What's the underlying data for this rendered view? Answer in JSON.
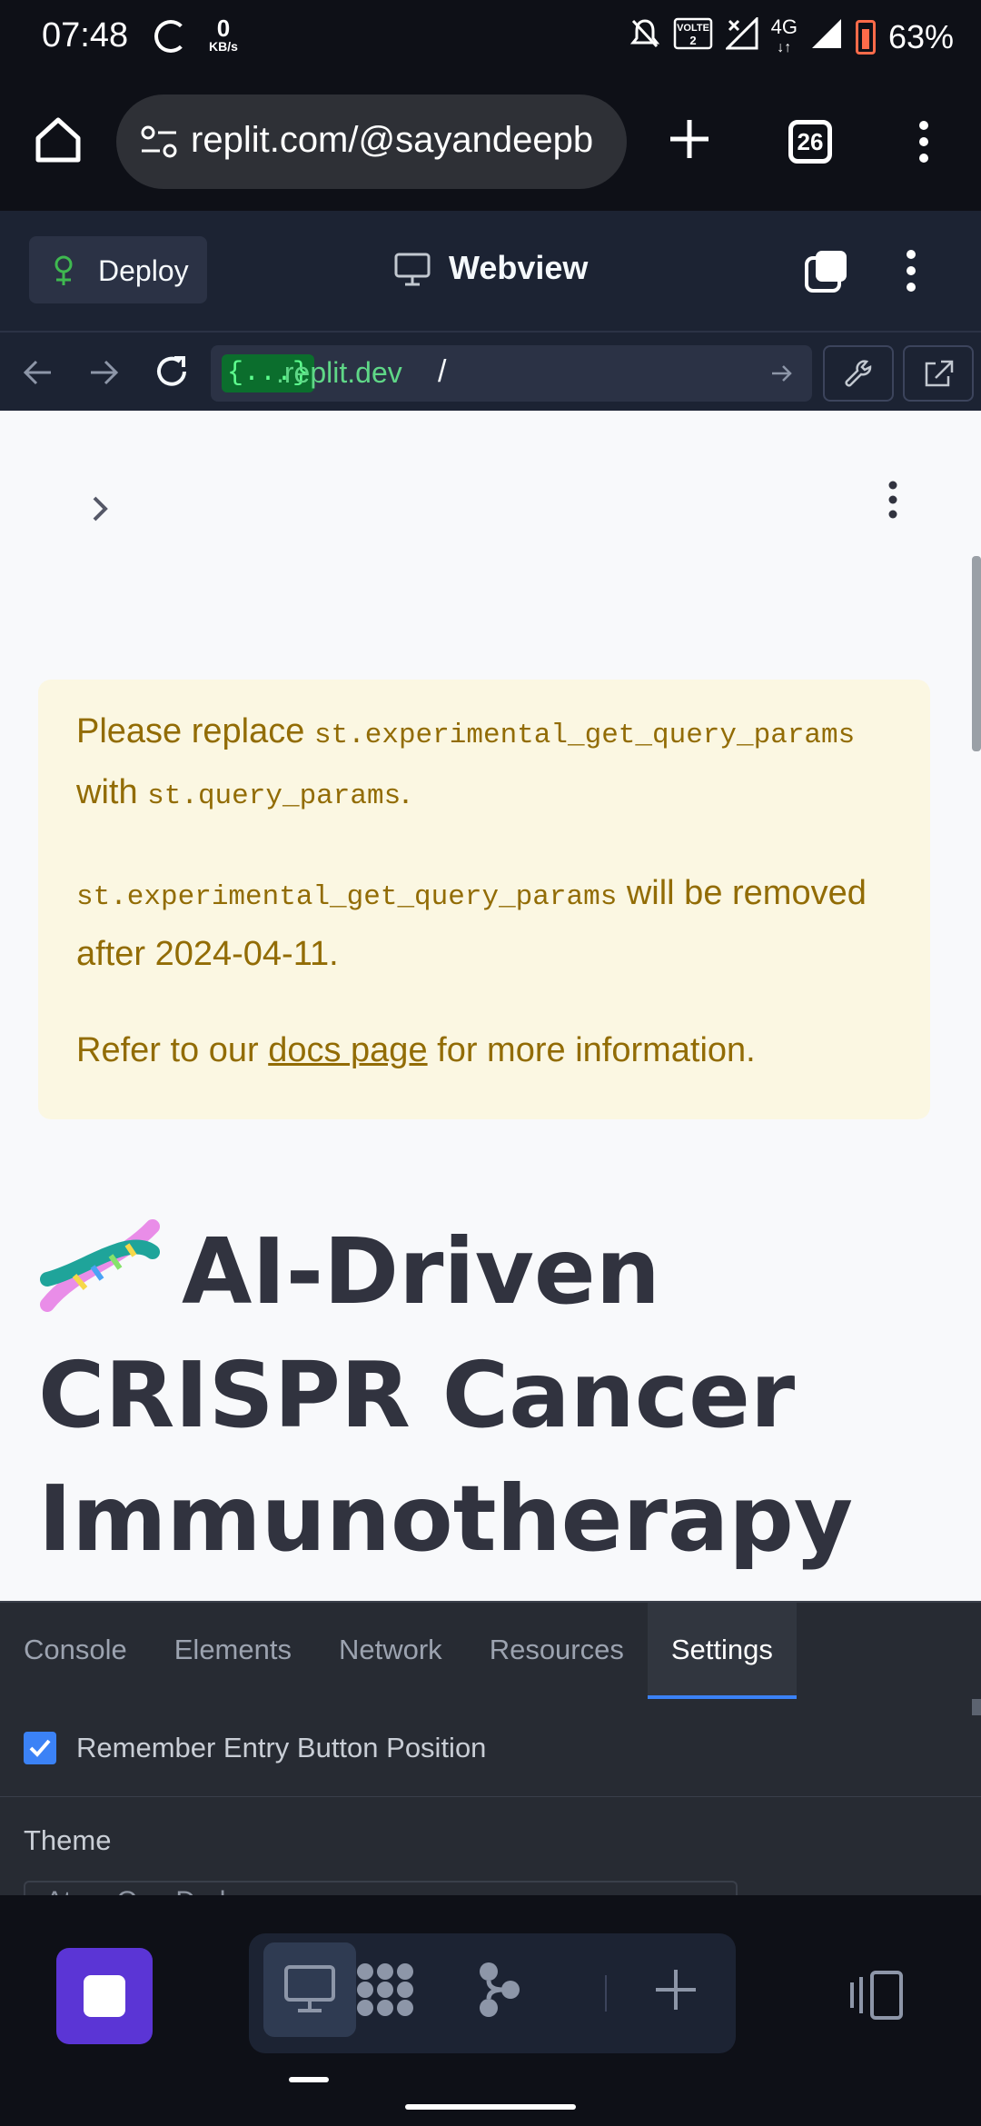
{
  "status_bar": {
    "time": "07:48",
    "speed_value": "0",
    "speed_unit": "KB/s",
    "network": "4G",
    "battery": "63%"
  },
  "browser": {
    "url": "replit.com/@sayandeepb",
    "tab_count": "26"
  },
  "replit": {
    "deploy_label": "Deploy",
    "webview_title": "Webview",
    "url_brace": "{...}",
    "url_domain": ".replit.dev",
    "url_path": "/"
  },
  "warning": {
    "line1_pre": "Please replace ",
    "line1_code": "st.experimental_get_query_params",
    "line2_pre": "with ",
    "line2_code": "st.query_params",
    "line2_post": ".",
    "p2_code": "st.experimental_get_query_params",
    "p2_post": " will be removed after 2024-04-11.",
    "p3_pre": "Refer to our ",
    "p3_link": "docs page",
    "p3_post": " for more information."
  },
  "page": {
    "title": "AI-Driven CRISPR Cancer Immunotherapy"
  },
  "devtools": {
    "tabs": [
      "Console",
      "Elements",
      "Network",
      "Resources",
      "Settings"
    ],
    "active_tab": "Settings",
    "remember_label": "Remember Entry Button Position",
    "theme_label": "Theme",
    "theme_value": "Atom One Dark"
  },
  "colors": {
    "accent": "#3b82f6",
    "warning_text": "#926c05",
    "warning_bg": "#fbf7e2",
    "stop_button": "#5b35d5"
  }
}
